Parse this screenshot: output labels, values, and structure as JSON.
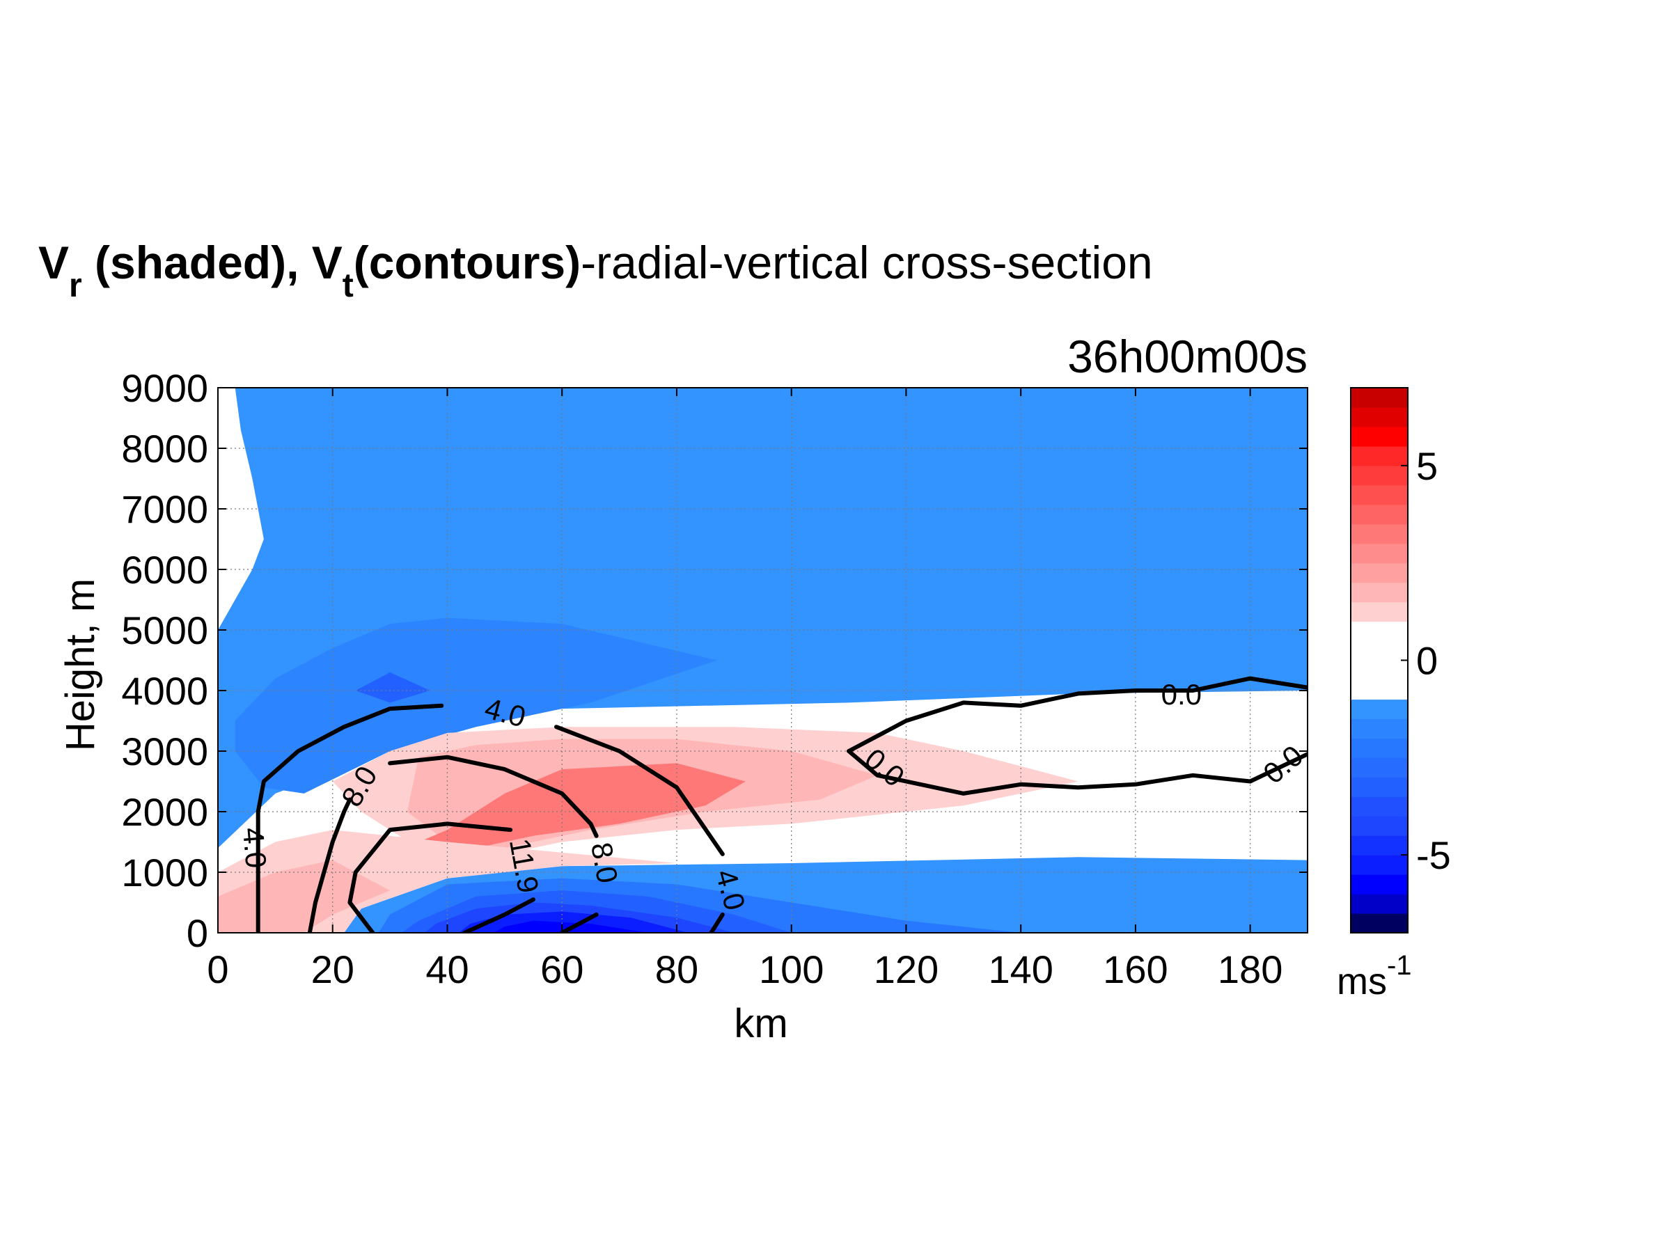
{
  "chart_data": {
    "type": "contour",
    "title": {
      "part1": "V",
      "part1_sub": "r",
      "part2": " (shaded), V",
      "part2_sub": "t",
      "part3": "(contours)",
      "part4": "-radial-vertical cross-section"
    },
    "time_label": "36h00m00s",
    "xlabel": "km",
    "ylabel": "Height, m",
    "xlim": [
      0,
      190
    ],
    "ylim": [
      0,
      9000
    ],
    "xticks": [
      0,
      20,
      40,
      60,
      80,
      100,
      120,
      140,
      160,
      180
    ],
    "yticks": [
      0,
      1000,
      2000,
      3000,
      4000,
      5000,
      6000,
      7000,
      8000,
      9000
    ],
    "grid": true,
    "colorbar": {
      "unit": "ms",
      "unit_sup": "-1",
      "range": [
        -7,
        7
      ],
      "ticks": [
        5,
        0,
        -5
      ],
      "levels": [
        {
          "from": -7.0,
          "to": -6.5,
          "color": "#000060"
        },
        {
          "from": -6.5,
          "to": -6.0,
          "color": "#0000c8"
        },
        {
          "from": -6.0,
          "to": -5.5,
          "color": "#0000ff"
        },
        {
          "from": -5.5,
          "to": -5.0,
          "color": "#0a1eff"
        },
        {
          "from": -5.0,
          "to": -4.5,
          "color": "#1432ff"
        },
        {
          "from": -4.5,
          "to": -4.0,
          "color": "#1e46ff"
        },
        {
          "from": -4.0,
          "to": -3.5,
          "color": "#2050ff"
        },
        {
          "from": -3.5,
          "to": -3.0,
          "color": "#2260ff"
        },
        {
          "from": -3.0,
          "to": -2.5,
          "color": "#256cff"
        },
        {
          "from": -2.5,
          "to": -2.0,
          "color": "#2878ff"
        },
        {
          "from": -2.0,
          "to": -1.5,
          "color": "#2c84ff"
        },
        {
          "from": -1.5,
          "to": -1.0,
          "color": "#3393ff"
        },
        {
          "from": -1.0,
          "to": 1.0,
          "color": "#ffffff"
        },
        {
          "from": 1.0,
          "to": 1.5,
          "color": "#ffd0d0"
        },
        {
          "from": 1.5,
          "to": 2.0,
          "color": "#ffb6b6"
        },
        {
          "from": 2.0,
          "to": 2.5,
          "color": "#ffa0a0"
        },
        {
          "from": 2.5,
          "to": 3.0,
          "color": "#ff8c8c"
        },
        {
          "from": 3.0,
          "to": 3.5,
          "color": "#ff7878"
        },
        {
          "from": 3.5,
          "to": 4.0,
          "color": "#ff6464"
        },
        {
          "from": 4.0,
          "to": 4.5,
          "color": "#ff5050"
        },
        {
          "from": 4.5,
          "to": 5.0,
          "color": "#ff3c3c"
        },
        {
          "from": 5.0,
          "to": 5.5,
          "color": "#ff2828"
        },
        {
          "from": 5.5,
          "to": 6.0,
          "color": "#ff0000"
        },
        {
          "from": 6.0,
          "to": 6.5,
          "color": "#e00000"
        },
        {
          "from": 6.5,
          "to": 7.0,
          "color": "#c80000"
        }
      ]
    },
    "shaded_regions": [
      {
        "name": "upper-outflow-blue",
        "color": "#3393ff",
        "points": [
          [
            3,
            9000
          ],
          [
            190,
            9000
          ],
          [
            190,
            4000
          ],
          [
            150,
            3950
          ],
          [
            110,
            3800
          ],
          [
            60,
            3700
          ],
          [
            40,
            3500
          ],
          [
            30,
            3000
          ],
          [
            10,
            2300
          ],
          [
            0,
            1400
          ],
          [
            0,
            5000
          ],
          [
            6,
            6000
          ],
          [
            8,
            6500
          ],
          [
            6,
            7500
          ],
          [
            4,
            8300
          ]
        ]
      },
      {
        "name": "outflow-core-blue",
        "color": "#2c84ff",
        "points": [
          [
            3,
            3000
          ],
          [
            8,
            2400
          ],
          [
            15,
            2300
          ],
          [
            30,
            3000
          ],
          [
            45,
            3400
          ],
          [
            65,
            3800
          ],
          [
            87,
            4500
          ],
          [
            60,
            5100
          ],
          [
            40,
            5200
          ],
          [
            30,
            5100
          ],
          [
            20,
            4700
          ],
          [
            10,
            4200
          ],
          [
            3,
            3500
          ]
        ]
      },
      {
        "name": "outflow-max-blue",
        "color": "#2260ff",
        "points": [
          [
            24,
            4000
          ],
          [
            30,
            3800
          ],
          [
            37,
            4000
          ],
          [
            30,
            4300
          ]
        ]
      },
      {
        "name": "inflow-blue",
        "color": "#3393ff",
        "points": [
          [
            22,
            0
          ],
          [
            190,
            0
          ],
          [
            190,
            1200
          ],
          [
            150,
            1250
          ],
          [
            100,
            1150
          ],
          [
            60,
            1100
          ],
          [
            40,
            900
          ],
          [
            25,
            400
          ]
        ]
      },
      {
        "name": "inflow-band-2",
        "color": "#2878ff",
        "points": [
          [
            28,
            0
          ],
          [
            140,
            0
          ],
          [
            120,
            200
          ],
          [
            100,
            500
          ],
          [
            80,
            800
          ],
          [
            60,
            900
          ],
          [
            40,
            800
          ],
          [
            30,
            300
          ]
        ]
      },
      {
        "name": "inflow-band-3",
        "color": "#2260ff",
        "points": [
          [
            32,
            0
          ],
          [
            100,
            0
          ],
          [
            90,
            300
          ],
          [
            75,
            600
          ],
          [
            60,
            700
          ],
          [
            45,
            600
          ],
          [
            35,
            200
          ]
        ]
      },
      {
        "name": "inflow-band-4",
        "color": "#1e46ff",
        "points": [
          [
            36,
            0
          ],
          [
            90,
            0
          ],
          [
            80,
            250
          ],
          [
            65,
            450
          ],
          [
            55,
            500
          ],
          [
            45,
            400
          ],
          [
            38,
            150
          ]
        ]
      },
      {
        "name": "inflow-band-5",
        "color": "#0a1eff",
        "points": [
          [
            42,
            0
          ],
          [
            82,
            0
          ],
          [
            72,
            250
          ],
          [
            60,
            350
          ],
          [
            50,
            300
          ],
          [
            44,
            150
          ]
        ]
      },
      {
        "name": "inflow-band-6",
        "color": "#0000ff",
        "points": [
          [
            48,
            0
          ],
          [
            75,
            0
          ],
          [
            65,
            150
          ],
          [
            55,
            200
          ],
          [
            50,
            100
          ]
        ]
      },
      {
        "name": "upper-positive-pink",
        "color": "#ffd0d0",
        "points": [
          [
            30,
            3000
          ],
          [
            40,
            3300
          ],
          [
            60,
            3400
          ],
          [
            90,
            3400
          ],
          [
            115,
            3300
          ],
          [
            130,
            3000
          ],
          [
            150,
            2500
          ],
          [
            130,
            2100
          ],
          [
            100,
            1800
          ],
          [
            80,
            1700
          ],
          [
            60,
            1500
          ],
          [
            45,
            1200
          ],
          [
            35,
            1400
          ],
          [
            25,
            2000
          ],
          [
            20,
            2500
          ]
        ]
      },
      {
        "name": "upper-positive-pink-2",
        "color": "#ffb6b6",
        "points": [
          [
            35,
            2900
          ],
          [
            45,
            3100
          ],
          [
            60,
            3200
          ],
          [
            80,
            3200
          ],
          [
            100,
            3000
          ],
          [
            115,
            2600
          ],
          [
            105,
            2200
          ],
          [
            85,
            2000
          ],
          [
            65,
            1700
          ],
          [
            50,
            1400
          ],
          [
            40,
            1500
          ],
          [
            33,
            2000
          ]
        ]
      },
      {
        "name": "upper-positive-red",
        "color": "#ff7878",
        "points": [
          [
            35,
            1500
          ],
          [
            40,
            1700
          ],
          [
            50,
            2300
          ],
          [
            60,
            2700
          ],
          [
            80,
            2800
          ],
          [
            92,
            2500
          ],
          [
            85,
            2100
          ],
          [
            70,
            1800
          ],
          [
            55,
            1600
          ],
          [
            45,
            1400
          ]
        ]
      },
      {
        "name": "lower-positive-pink",
        "color": "#ffd0d0",
        "points": [
          [
            0,
            0
          ],
          [
            22,
            0
          ],
          [
            25,
            400
          ],
          [
            40,
            900
          ],
          [
            60,
            1100
          ],
          [
            80,
            1150
          ],
          [
            40,
            1500
          ],
          [
            20,
            1700
          ],
          [
            10,
            1500
          ],
          [
            0,
            1000
          ]
        ]
      },
      {
        "name": "lower-positive-pink-2",
        "color": "#ffb6b6",
        "points": [
          [
            0,
            0
          ],
          [
            15,
            0
          ],
          [
            20,
            300
          ],
          [
            30,
            700
          ],
          [
            20,
            1200
          ],
          [
            10,
            1000
          ],
          [
            0,
            600
          ]
        ]
      }
    ],
    "contours": [
      {
        "name": "vt-4-inner",
        "points": [
          [
            7,
            0
          ],
          [
            7,
            1000
          ],
          [
            7,
            2000
          ],
          [
            8,
            2500
          ],
          [
            14,
            3000
          ],
          [
            22,
            3400
          ],
          [
            30,
            3700
          ],
          [
            39,
            3750
          ]
        ]
      },
      {
        "name": "vt-8-inner",
        "points": [
          [
            16,
            0
          ],
          [
            17,
            500
          ],
          [
            20,
            1500
          ],
          [
            22,
            2000
          ],
          [
            23,
            2200
          ]
        ]
      },
      {
        "name": "vt-11-9",
        "points": [
          [
            27,
            0
          ],
          [
            23,
            500
          ],
          [
            24,
            1000
          ],
          [
            30,
            1700
          ],
          [
            40,
            1800
          ],
          [
            51,
            1700
          ]
        ]
      },
      {
        "name": "vt-8-outer",
        "points": [
          [
            30,
            2800
          ],
          [
            40,
            2900
          ],
          [
            50,
            2700
          ],
          [
            60,
            2300
          ],
          [
            65,
            1800
          ],
          [
            66,
            1600
          ]
        ]
      },
      {
        "name": "vt-4-outer",
        "points": [
          [
            59,
            3400
          ],
          [
            70,
            3000
          ],
          [
            80,
            2400
          ],
          [
            88,
            1300
          ]
        ]
      },
      {
        "name": "vt-0-upper",
        "points": [
          [
            110,
            3000
          ],
          [
            120,
            3500
          ],
          [
            130,
            3800
          ],
          [
            140,
            3750
          ],
          [
            150,
            3950
          ],
          [
            160,
            4000
          ],
          [
            170,
            4000
          ],
          [
            180,
            4200
          ],
          [
            190,
            4050
          ]
        ]
      },
      {
        "name": "vt-0-lower",
        "points": [
          [
            110,
            3000
          ],
          [
            115,
            2600
          ],
          [
            130,
            2300
          ],
          [
            140,
            2450
          ],
          [
            150,
            2400
          ],
          [
            160,
            2450
          ],
          [
            170,
            2600
          ],
          [
            180,
            2500
          ],
          [
            190,
            2950
          ]
        ]
      },
      {
        "name": "vt-11-9-low",
        "points": [
          [
            43,
            0
          ],
          [
            50,
            300
          ],
          [
            55,
            550
          ]
        ]
      },
      {
        "name": "vt-8-low",
        "points": [
          [
            60,
            0
          ],
          [
            66,
            300
          ]
        ]
      },
      {
        "name": "vt-4-low",
        "points": [
          [
            86,
            0
          ],
          [
            88,
            300
          ]
        ]
      }
    ],
    "contour_labels": [
      {
        "text": "4.0",
        "x": 6,
        "y": 1400,
        "angle": 85
      },
      {
        "text": "8.0",
        "x": 25,
        "y": 2400,
        "angle": -60
      },
      {
        "text": "4.0",
        "x": 50,
        "y": 3600,
        "angle": 15
      },
      {
        "text": "11.9",
        "x": 53,
        "y": 1100,
        "angle": 80
      },
      {
        "text": "8.0",
        "x": 67,
        "y": 1150,
        "angle": 80
      },
      {
        "text": "4.0",
        "x": 89,
        "y": 700,
        "angle": 75
      },
      {
        "text": "0.0",
        "x": 116,
        "y": 2700,
        "angle": 40
      },
      {
        "text": "0.0",
        "x": 168,
        "y": 3900,
        "angle": 0
      },
      {
        "text": "0.0",
        "x": 186,
        "y": 2750,
        "angle": -40
      }
    ]
  }
}
